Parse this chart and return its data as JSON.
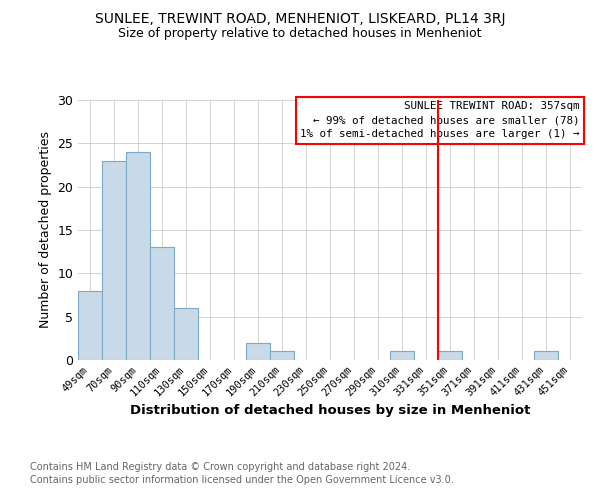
{
  "title": "SUNLEE, TREWINT ROAD, MENHENIOT, LISKEARD, PL14 3RJ",
  "subtitle": "Size of property relative to detached houses in Menheniot",
  "xlabel": "Distribution of detached houses by size in Menheniot",
  "ylabel": "Number of detached properties",
  "bar_color": "#c8d9e8",
  "bar_edgecolor": "#7aaac8",
  "bins": [
    "49sqm",
    "70sqm",
    "90sqm",
    "110sqm",
    "130sqm",
    "150sqm",
    "170sqm",
    "190sqm",
    "210sqm",
    "230sqm",
    "250sqm",
    "270sqm",
    "290sqm",
    "310sqm",
    "331sqm",
    "351sqm",
    "371sqm",
    "391sqm",
    "411sqm",
    "431sqm",
    "451sqm"
  ],
  "values": [
    8,
    23,
    24,
    13,
    6,
    0,
    0,
    2,
    1,
    0,
    0,
    0,
    0,
    1,
    0,
    1,
    0,
    0,
    0,
    1,
    0
  ],
  "ylim": [
    0,
    30
  ],
  "yticks": [
    0,
    5,
    10,
    15,
    20,
    25,
    30
  ],
  "vline_color": "#ff0000",
  "annotation_title": "SUNLEE TREWINT ROAD: 357sqm",
  "annotation_line1": "← 99% of detached houses are smaller (78)",
  "annotation_line2": "1% of semi-detached houses are larger (1) →",
  "box_facecolor": "#ffffff",
  "box_edgecolor": "#ff0000",
  "footer1": "Contains HM Land Registry data © Crown copyright and database right 2024.",
  "footer2": "Contains public sector information licensed under the Open Government Licence v3.0.",
  "background_color": "#ffffff",
  "figsize": [
    6.0,
    5.0
  ],
  "dpi": 100
}
